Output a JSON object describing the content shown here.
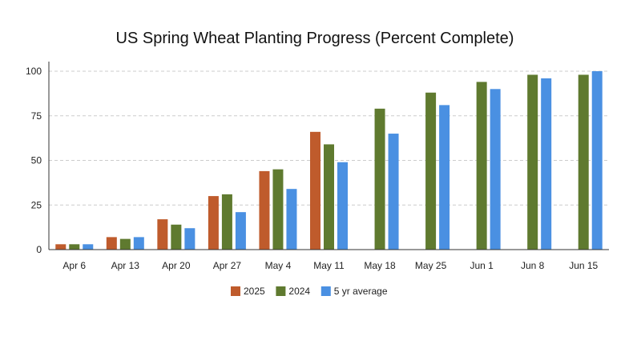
{
  "chart_data": {
    "type": "bar",
    "title": "US Spring Wheat Planting Progress (Percent Complete)",
    "xlabel": "",
    "ylabel": "",
    "ylim": [
      0,
      100
    ],
    "yticks": [
      0,
      25,
      50,
      75,
      100
    ],
    "grid": true,
    "legend_position": "bottom",
    "categories": [
      "Apr 6",
      "Apr 13",
      "Apr 20",
      "Apr 27",
      "May 4",
      "May 11",
      "May 18",
      "May 25",
      "Jun 1",
      "Jun 8",
      "Jun 15"
    ],
    "series": [
      {
        "name": "2025",
        "color": "#bf5b2c",
        "values": [
          3,
          7,
          17,
          30,
          44,
          66,
          null,
          null,
          null,
          null,
          null
        ]
      },
      {
        "name": "2024",
        "color": "#5f7a2f",
        "values": [
          3,
          6,
          14,
          31,
          45,
          59,
          79,
          88,
          94,
          98,
          98
        ]
      },
      {
        "name": "5 yr average",
        "color": "#4a90e2",
        "values": [
          3,
          7,
          12,
          21,
          34,
          49,
          65,
          81,
          90,
          96,
          100
        ]
      }
    ]
  }
}
